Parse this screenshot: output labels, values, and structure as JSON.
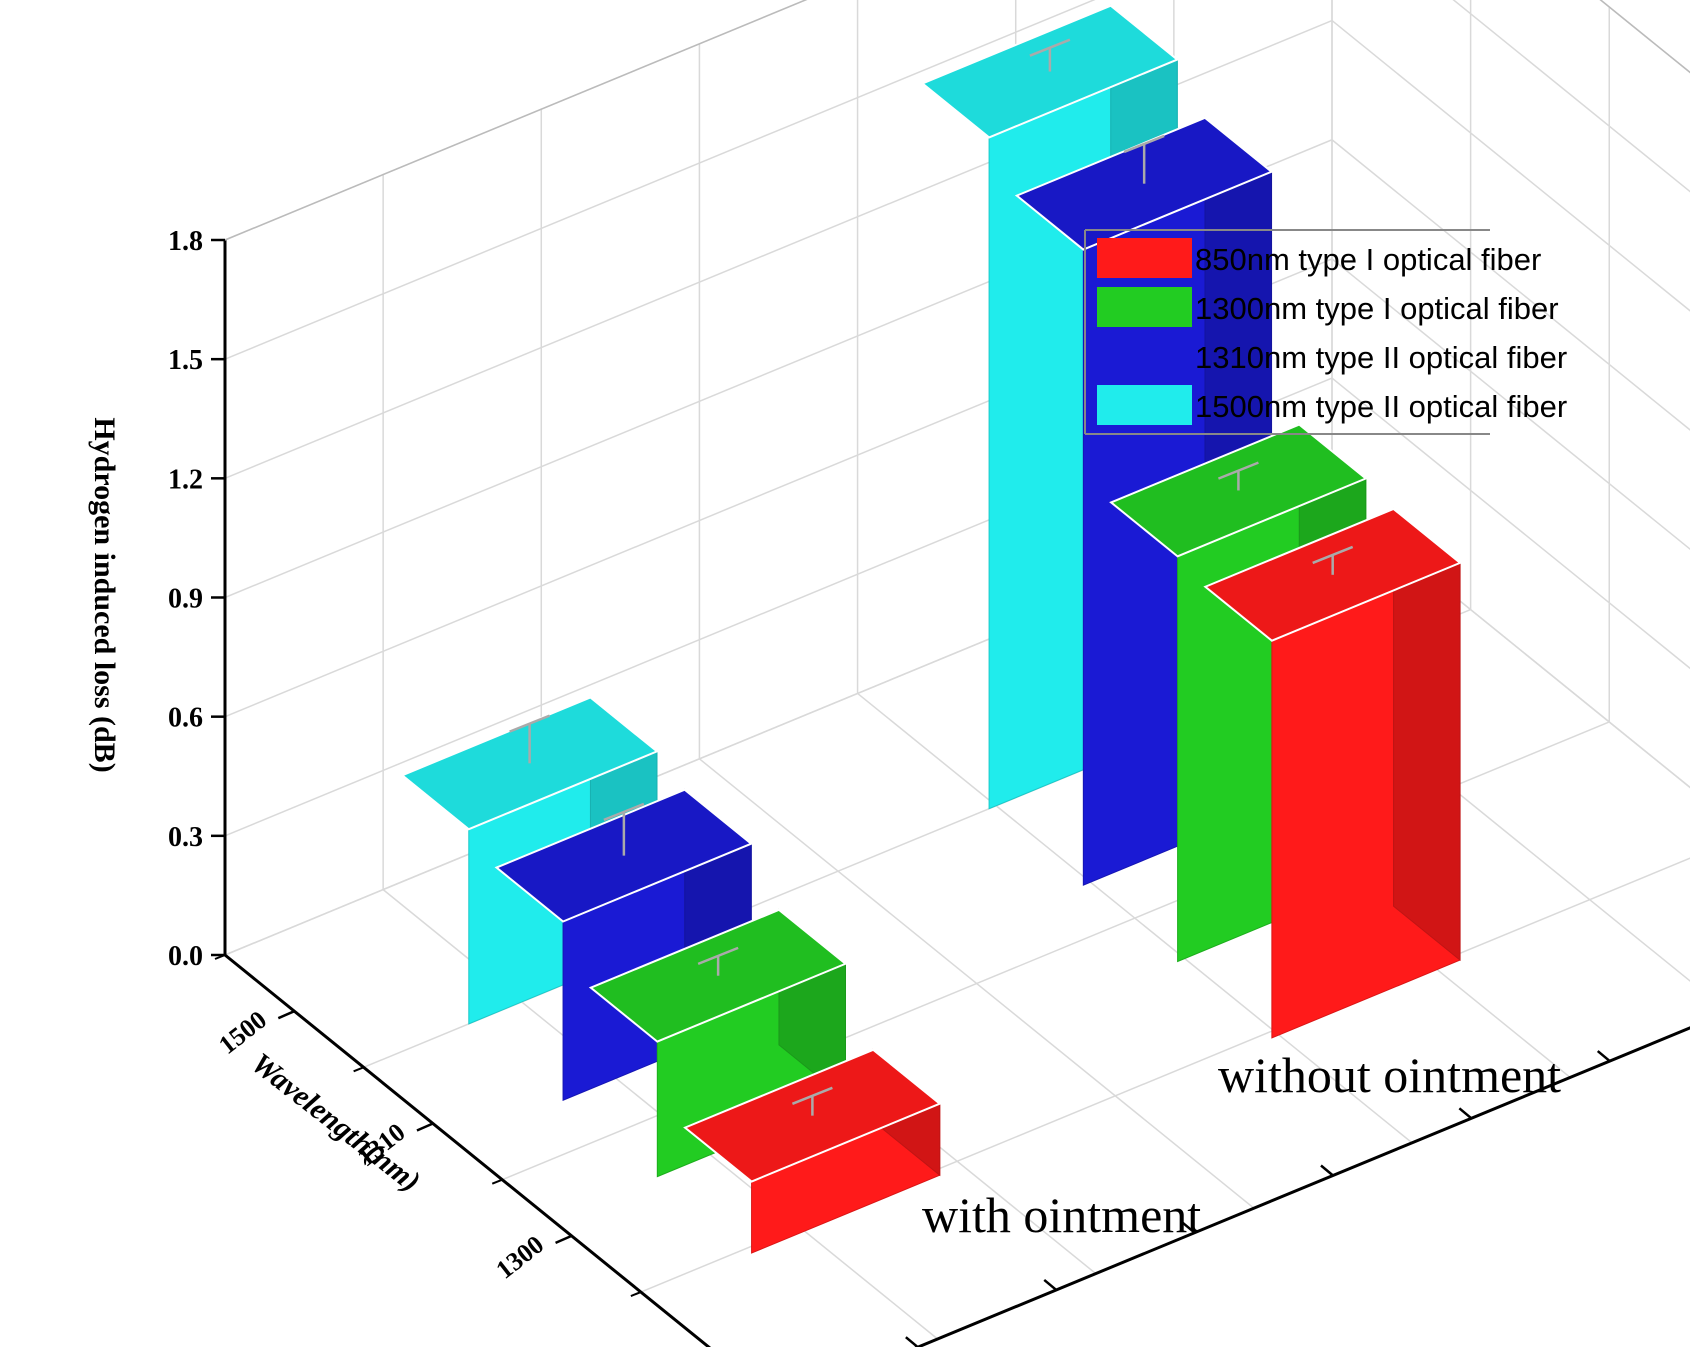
{
  "chart_data": {
    "type": "bar",
    "subtype": "3d-bar",
    "title": "",
    "ylabel": "Hydrogen induced loss (dB)",
    "xlabel": "Wavelength(nm)",
    "ylim": [
      0,
      1.8
    ],
    "yticks": [
      "0.0",
      "0.3",
      "0.6",
      "0.9",
      "1.2",
      "1.5",
      "1.8"
    ],
    "wavelengths": [
      "1500",
      "1310",
      "1300",
      "850"
    ],
    "groups": [
      "with ointment",
      "without ointment"
    ],
    "series": [
      {
        "name": "850nm   type I optical fiber",
        "wavelength": "850",
        "color": "#ff1a1a",
        "values": [
          0.18,
          1.0
        ],
        "errors": [
          0.05,
          0.05
        ]
      },
      {
        "name": "1300nm type I optical fiber",
        "wavelength": "1300",
        "color": "#22cc22",
        "values": [
          0.34,
          1.02
        ],
        "errors": [
          0.05,
          0.05
        ]
      },
      {
        "name": "1310nm type II optical fiber",
        "wavelength": "1310",
        "color": "#1a1ad4",
        "values": [
          0.45,
          1.6
        ],
        "errors": [
          0.11,
          0.1
        ]
      },
      {
        "name": "1500nm type II optical fiber",
        "wavelength": "1500",
        "color": "#20ecec",
        "values": [
          0.49,
          1.69
        ],
        "errors": [
          0.1,
          0.06
        ]
      }
    ],
    "legend_position": "top-right",
    "grid": true
  }
}
